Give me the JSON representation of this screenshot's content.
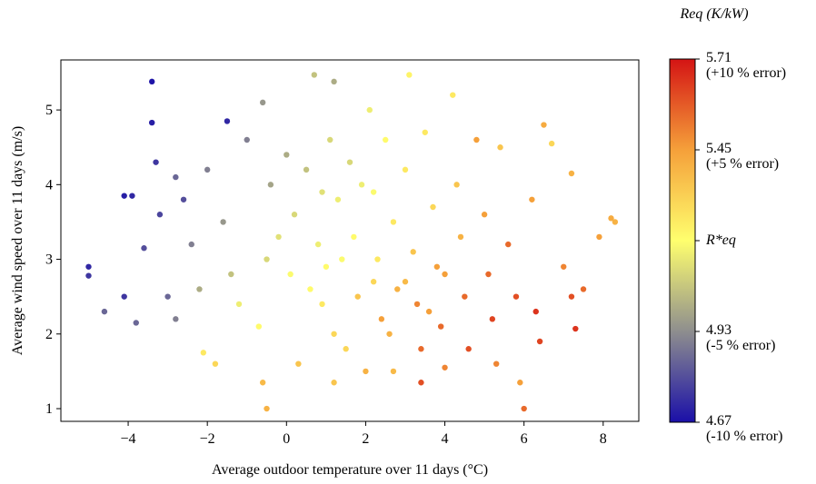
{
  "chart_data": {
    "type": "scatter",
    "xlabel": "Average outdoor temperature over 11 days (°C)",
    "ylabel": "Average wind speed over 11 days (m/s)",
    "colorbar_title": "Req (K/kW)",
    "xlim": [
      -5.7,
      8.9
    ],
    "ylim": [
      0.83,
      5.67
    ],
    "xticks": [
      {
        "value": -4,
        "label": "−4"
      },
      {
        "value": -2,
        "label": "−2"
      },
      0,
      2,
      4,
      6,
      8
    ],
    "yticks": [
      1,
      2,
      3,
      4,
      5
    ],
    "clim": [
      4.67,
      5.71
    ],
    "cticks": [
      {
        "value": 5.71,
        "label": "5.71\n(+10 % error)"
      },
      {
        "value": 5.45,
        "label": "5.45\n(+5 % error)"
      },
      {
        "value": 5.19,
        "label": "R*eq"
      },
      {
        "value": 4.93,
        "label": "4.93\n(-5 % error)"
      },
      {
        "value": 4.67,
        "label": "4.67\n(-10 % error)"
      }
    ],
    "colormap": [
      "#1a0fa8",
      "#8e8e8e",
      "#ffff6e",
      "#f5a03a",
      "#d41414"
    ],
    "x": [
      -5,
      -5,
      -4.1,
      -3.9,
      -4.1,
      -3.4,
      -3.4,
      -3.2,
      -3.6,
      -3.0,
      -2.8,
      -2.6,
      -2.4,
      -2.2,
      -2.0,
      -1.5,
      -1.6,
      -1.2,
      -2.1,
      -1.8,
      -1.0,
      -0.6,
      -0.4,
      -0.5,
      -0.7,
      -0.6,
      -0.5,
      0,
      0.2,
      0.1,
      0.3,
      0.7,
      0.5,
      0.8,
      0.9,
      1.2,
      1.1,
      1.3,
      1.0,
      1.2,
      1.2,
      1.6,
      1.7,
      1.8,
      1.5,
      2.1,
      2.2,
      2.3,
      2.4,
      2.0,
      2.5,
      2.7,
      2.8,
      2.7,
      3.1,
      3.0,
      3.2,
      3.3,
      3.4,
      3.4,
      3.5,
      3.7,
      3.8,
      3.9,
      4.0,
      4.2,
      4.3,
      4.4,
      4.5,
      4.6,
      4.8,
      5.0,
      5.1,
      5.2,
      5.3,
      5.4,
      5.6,
      5.8,
      5.9,
      6.0,
      6.2,
      6.3,
      6.4,
      6.5,
      6.7,
      7.2,
      7.0,
      7.2,
      7.3,
      7.5,
      7.9,
      8.2,
      8.3,
      -0.2,
      0.6,
      1.4,
      2.2,
      3.0,
      4.0,
      -1.4,
      -2.8,
      -4.6,
      -3.8,
      -3.3,
      0.9,
      1.9,
      2.6,
      3.6
    ],
    "values": [
      2.9,
      2.78,
      3.85,
      3.85,
      2.5,
      5.38,
      4.83,
      3.6,
      3.15,
      2.5,
      4.1,
      3.8,
      3.2,
      2.6,
      4.2,
      4.85,
      3.5,
      2.4,
      1.75,
      1.6,
      4.6,
      5.1,
      4.0,
      3.0,
      2.1,
      1.35,
      1.0,
      4.4,
      3.6,
      2.8,
      1.6,
      5.47,
      4.2,
      3.2,
      2.4,
      5.38,
      4.6,
      3.8,
      2.9,
      2.0,
      1.35,
      4.3,
      3.3,
      2.5,
      1.8,
      5.0,
      3.9,
      3.0,
      2.2,
      1.5,
      4.6,
      3.5,
      2.6,
      1.5,
      5.47,
      4.2,
      3.1,
      2.4,
      1.8,
      1.35,
      4.7,
      3.7,
      2.9,
      2.1,
      1.55,
      5.2,
      4.0,
      3.3,
      2.5,
      1.8,
      4.6,
      3.6,
      2.8,
      2.2,
      1.6,
      4.5,
      3.2,
      2.5,
      1.35,
      1.0,
      3.8,
      2.3,
      1.9,
      4.8,
      4.55,
      4.15,
      2.9,
      2.5,
      2.07,
      2.6,
      3.3,
      3.55,
      3.5,
      3.3,
      2.6,
      3.0,
      2.7,
      2.7,
      2.8,
      2.8,
      2.2,
      2.3,
      2.15,
      4.3,
      3.9,
      4.0,
      2.0,
      2.3
    ],
    "c_values": [
      4.72,
      4.75,
      4.7,
      4.72,
      4.75,
      4.68,
      4.7,
      4.78,
      4.8,
      4.85,
      4.85,
      4.8,
      4.9,
      5.0,
      4.9,
      4.72,
      4.95,
      5.15,
      5.25,
      5.3,
      4.9,
      4.95,
      4.98,
      5.1,
      5.2,
      5.38,
      5.4,
      5.0,
      5.1,
      5.18,
      5.35,
      5.05,
      5.05,
      5.15,
      5.25,
      5.0,
      5.1,
      5.15,
      5.2,
      5.3,
      5.35,
      5.1,
      5.2,
      5.35,
      5.3,
      5.15,
      5.18,
      5.25,
      5.45,
      5.4,
      5.2,
      5.25,
      5.4,
      5.38,
      5.22,
      5.25,
      5.35,
      5.5,
      5.55,
      5.6,
      5.25,
      5.3,
      5.45,
      5.55,
      5.5,
      5.25,
      5.35,
      5.4,
      5.55,
      5.6,
      5.45,
      5.45,
      5.55,
      5.62,
      5.5,
      5.35,
      5.55,
      5.6,
      5.45,
      5.55,
      5.45,
      5.65,
      5.62,
      5.42,
      5.3,
      5.4,
      5.5,
      5.6,
      5.65,
      5.55,
      5.45,
      5.42,
      5.4,
      5.12,
      5.2,
      5.18,
      5.3,
      5.38,
      5.45,
      5.05,
      4.9,
      4.85,
      4.85,
      4.75,
      5.12,
      5.15,
      5.4,
      5.45
    ]
  }
}
